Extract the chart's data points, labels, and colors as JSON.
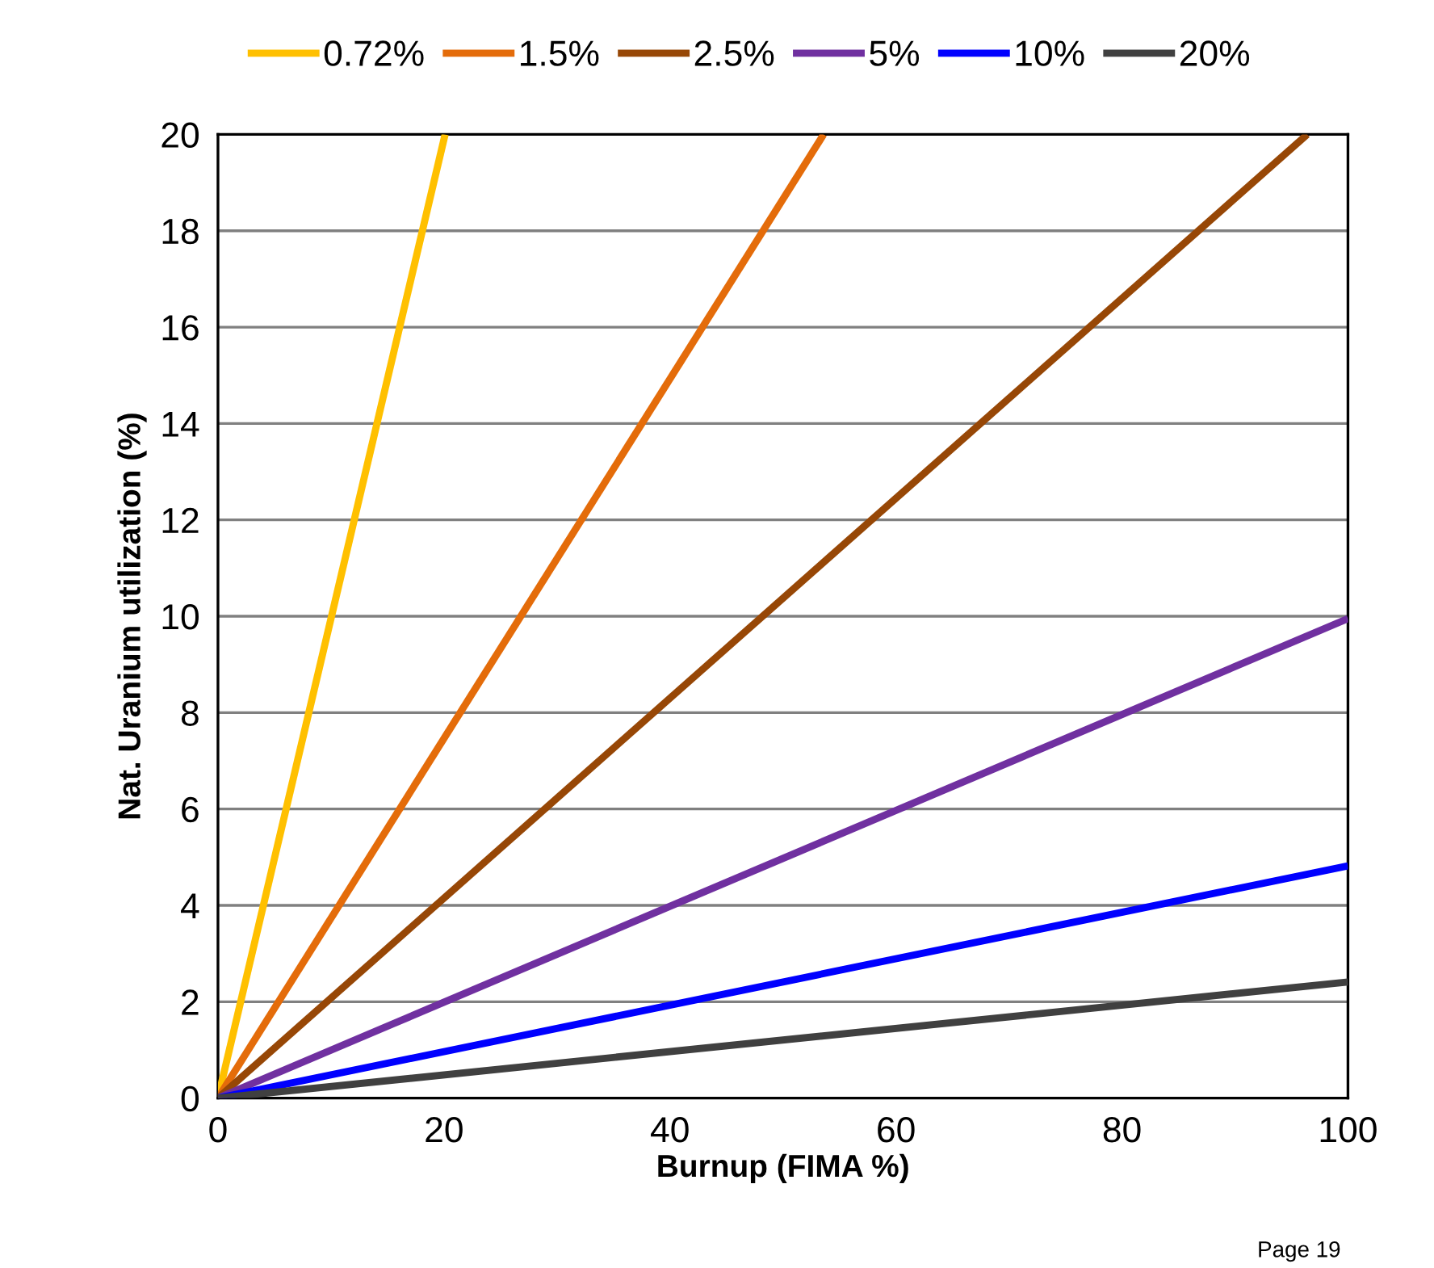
{
  "chart_data": {
    "type": "line",
    "xlabel": "Burnup (FIMA %)",
    "ylabel": "Nat. Uranium utilization (%)",
    "xlim": [
      0,
      100
    ],
    "ylim": [
      0,
      20
    ],
    "xticks": [
      0,
      20,
      40,
      60,
      80,
      100
    ],
    "yticks": [
      0,
      2,
      4,
      6,
      8,
      10,
      12,
      14,
      16,
      18,
      20
    ],
    "grid": "y",
    "legend": "top",
    "marker": "none",
    "line_style": "solid",
    "series": [
      {
        "name": "0.72%",
        "color": "#ffc000",
        "x": [
          0,
          20.1
        ],
        "values": [
          0,
          20
        ]
      },
      {
        "name": "1.5%",
        "color": "#e46c0a",
        "x": [
          0,
          53.6
        ],
        "values": [
          0,
          20
        ]
      },
      {
        "name": "2.5%",
        "color": "#974706",
        "x": [
          0,
          96.4
        ],
        "values": [
          0,
          20
        ]
      },
      {
        "name": "5%",
        "color": "#7030a0",
        "x": [
          0,
          100
        ],
        "values": [
          0,
          9.95
        ]
      },
      {
        "name": "10%",
        "color": "#0000ff",
        "x": [
          0,
          100
        ],
        "values": [
          0,
          4.82
        ]
      },
      {
        "name": "20%",
        "color": "#404040",
        "x": [
          0,
          100
        ],
        "values": [
          0,
          2.41
        ]
      }
    ],
    "annotations": [
      "Page 19"
    ]
  }
}
